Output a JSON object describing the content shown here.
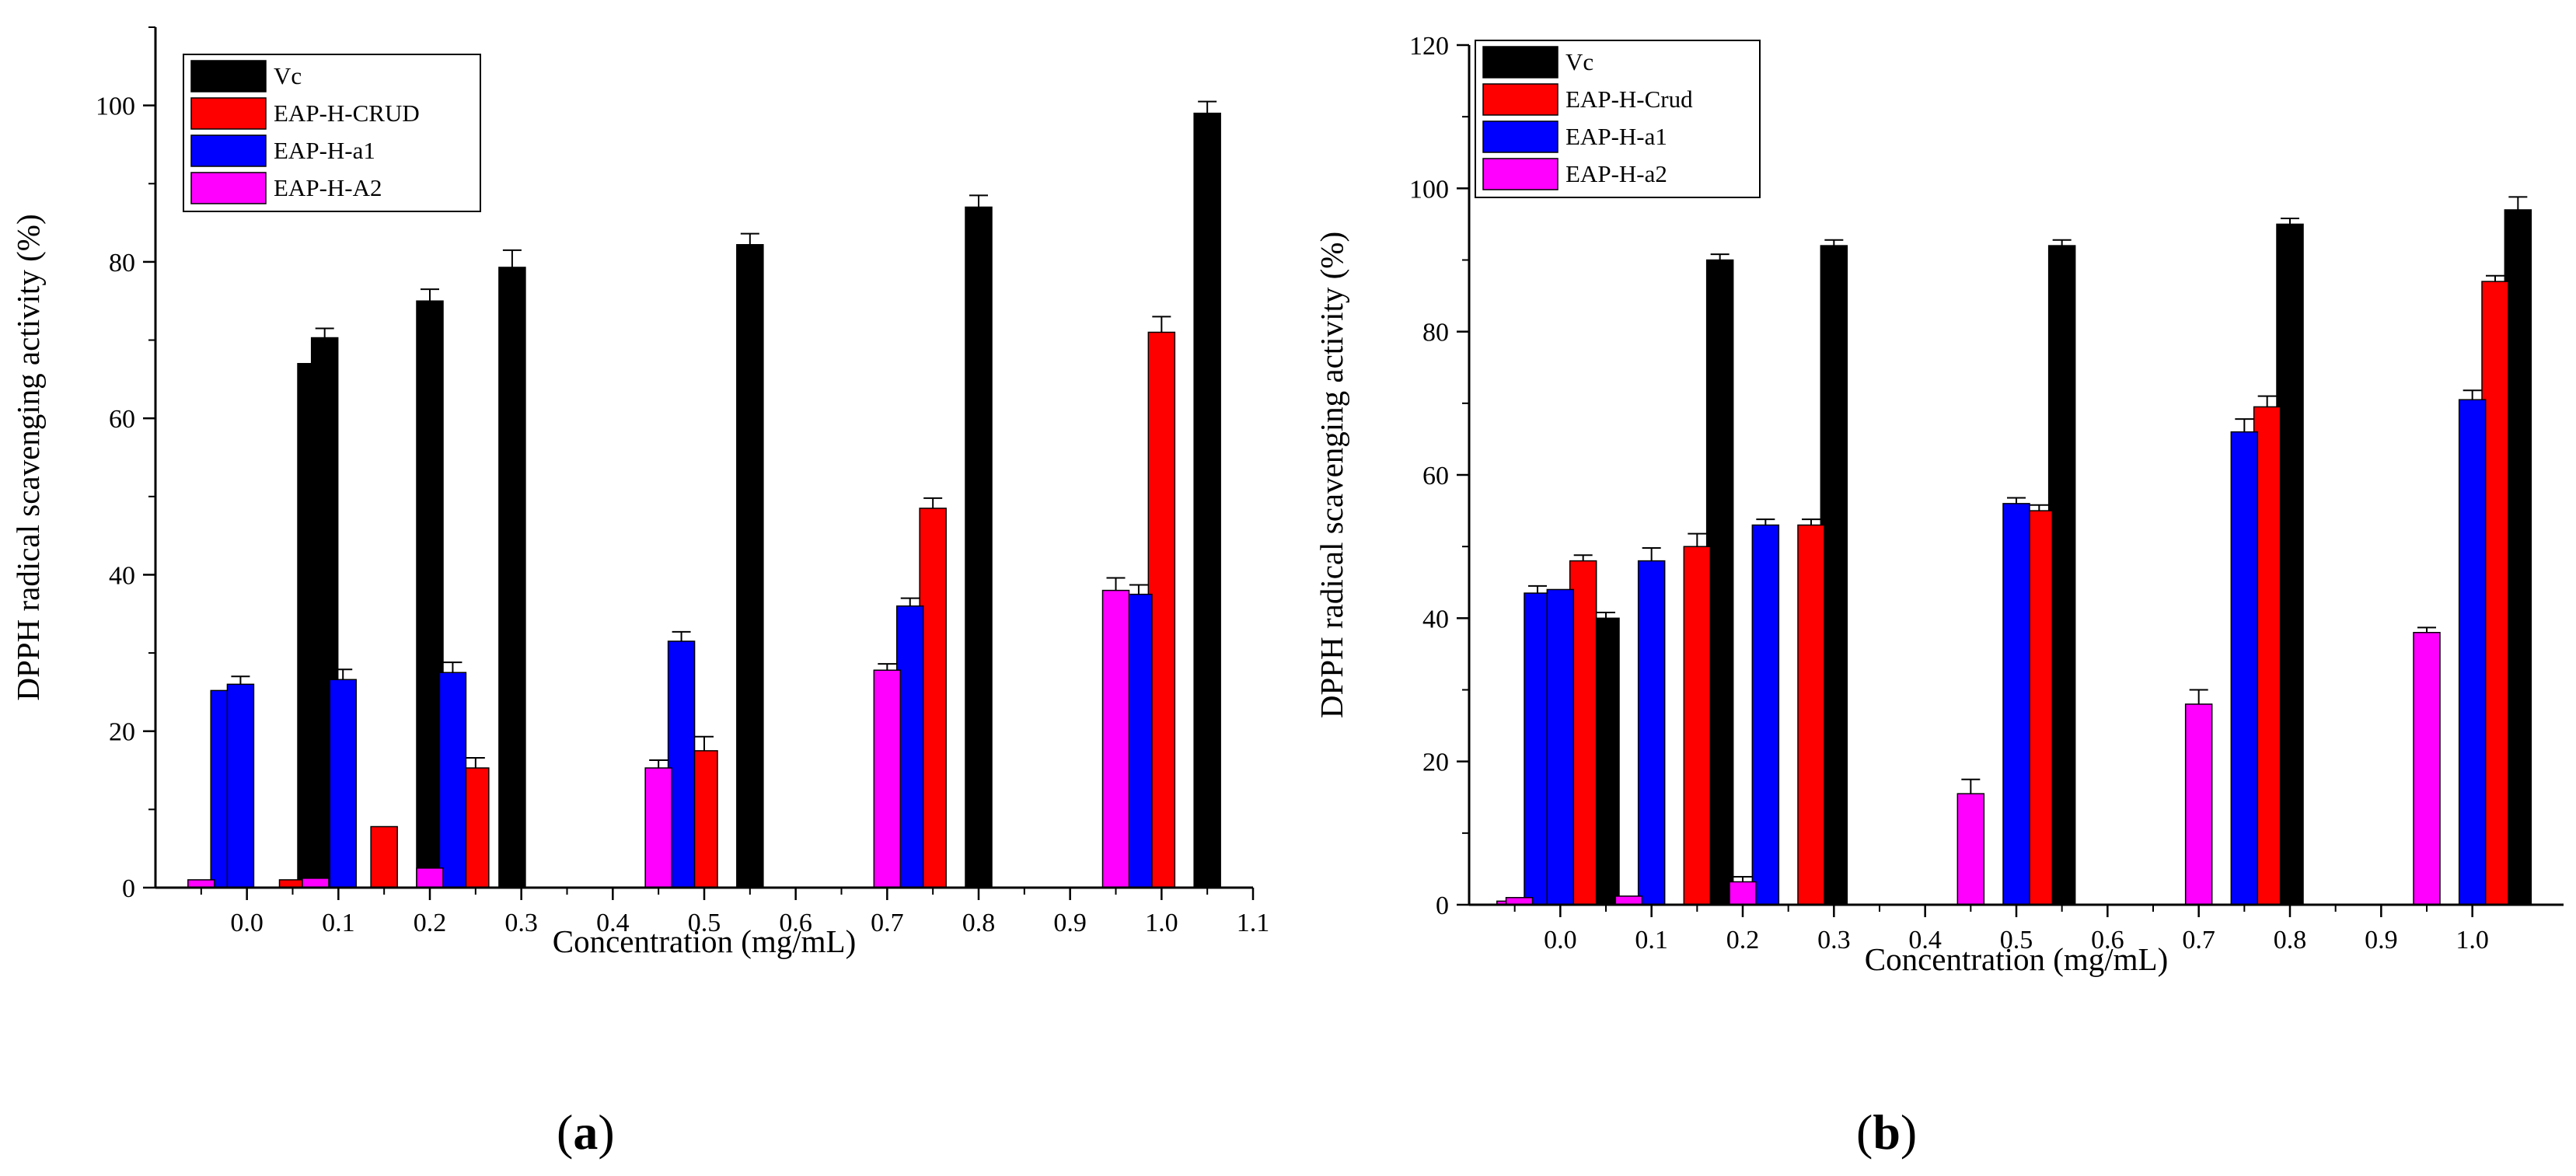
{
  "chart_data": [
    {
      "type": "bar",
      "panel": "a",
      "xlabel": "Concentration (mg/mL)",
      "ylabel": "DPPH radical scavenging activity (%)",
      "ylim": [
        0,
        110
      ],
      "yticks": [
        0,
        20,
        40,
        60,
        80,
        100
      ],
      "xlim": [
        -0.1,
        1.1
      ],
      "xticks": [
        "0.0",
        "0.1",
        "0.2",
        "0.3",
        "0.4",
        "0.5",
        "0.6",
        "0.7",
        "0.8",
        "0.9",
        "1.0",
        "1.1"
      ],
      "legend_position": "top-left",
      "series": [
        {
          "name": "Vc",
          "color": "#000000",
          "x": [
            0.07,
            0.085,
            0.2,
            0.29,
            0.55,
            0.8,
            1.05
          ],
          "values": [
            67,
            70.3,
            75,
            79.3,
            82.2,
            87,
            99
          ],
          "errors": [
            0,
            1.2,
            1.5,
            2.2,
            1.4,
            1.5,
            1.5
          ]
        },
        {
          "name": "EAP-H-CRUD",
          "color": "#ff0000",
          "x": [
            0.05,
            0.15,
            0.25,
            0.5,
            0.75,
            1.0
          ],
          "values": [
            1,
            7.8,
            15.3,
            17.5,
            48.5,
            71
          ],
          "errors": [
            0,
            0,
            1.3,
            1.8,
            1.3,
            2
          ]
        },
        {
          "name": "EAP-H-a1",
          "color": "#0000ff",
          "x": [
            -0.025,
            -0.007,
            0.105,
            0.225,
            0.475,
            0.725,
            0.975
          ],
          "values": [
            25.2,
            26,
            26.6,
            27.5,
            31.5,
            36,
            37.5
          ],
          "errors": [
            0,
            1,
            1.3,
            1.3,
            1.2,
            1,
            1.2
          ]
        },
        {
          "name": "EAP-H-A2",
          "color": "#ff00ff",
          "x": [
            -0.05,
            0.075,
            0.2,
            0.45,
            0.7,
            0.95
          ],
          "values": [
            1,
            1.2,
            2.5,
            15.3,
            27.8,
            38
          ],
          "errors": [
            0,
            0,
            0.5,
            1,
            0.8,
            1.6
          ]
        }
      ]
    },
    {
      "type": "bar",
      "panel": "b",
      "xlabel": "Concentration (mg/mL)",
      "ylabel": "DPPH radical scavenging activity (%)",
      "ylim": [
        0,
        120
      ],
      "yticks": [
        0,
        20,
        40,
        60,
        80,
        100,
        120
      ],
      "xlim": [
        -0.1,
        1.1
      ],
      "xticks": [
        "0.0",
        "0.1",
        "0.2",
        "0.3",
        "0.4",
        "0.5",
        "0.6",
        "0.7",
        "0.8",
        "0.9",
        "1.0"
      ],
      "legend_position": "top-left",
      "series": [
        {
          "name": "Vc",
          "color": "#000000",
          "x": [
            0.05,
            0.175,
            0.3,
            0.55,
            0.8,
            1.05
          ],
          "values": [
            40,
            90,
            92,
            92,
            95,
            97
          ],
          "errors": [
            0.8,
            0.8,
            0.8,
            0.8,
            0.8,
            1.8
          ]
        },
        {
          "name": "EAP-H-Crud",
          "color": "#ff0000",
          "x": [
            0.005,
            0.025,
            0.15,
            0.275,
            0.525,
            0.775,
            1.025
          ],
          "values": [
            43,
            48,
            50,
            53,
            55,
            69.5,
            87
          ],
          "errors": [
            0,
            0.8,
            1.8,
            0.8,
            0.8,
            1.5,
            0.8
          ]
        },
        {
          "name": "EAP-H-a1",
          "color": "#0000ff",
          "x": [
            -0.025,
            0.0,
            0.1,
            0.225,
            0.5,
            0.75,
            1.0
          ],
          "values": [
            43.5,
            44,
            48,
            53,
            56,
            66,
            70.5
          ],
          "errors": [
            1,
            0,
            1.8,
            0.8,
            0.8,
            1.8,
            1.3
          ]
        },
        {
          "name": "EAP-H-a2",
          "color": "#ff00ff",
          "x": [
            -0.055,
            -0.045,
            0.075,
            0.2,
            0.45,
            0.7,
            0.95
          ],
          "values": [
            0.5,
            1,
            1.2,
            3.2,
            15.5,
            28,
            38
          ],
          "errors": [
            0,
            0,
            0,
            0.7,
            2,
            2,
            0.7
          ]
        }
      ]
    }
  ],
  "panel_labels": {
    "a": {
      "open": "(",
      "letter": "a",
      "close": ")"
    },
    "b": {
      "open": "(",
      "letter": "b",
      "close": ")"
    }
  }
}
